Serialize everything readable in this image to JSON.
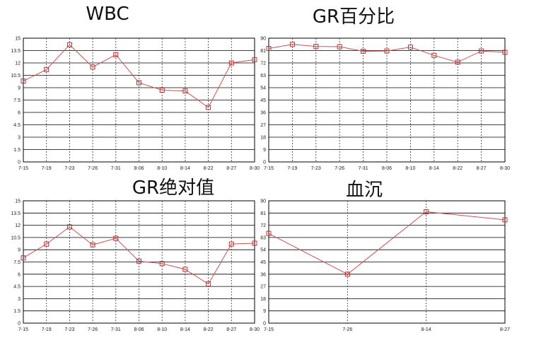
{
  "chart_data": [
    {
      "type": "line",
      "title": "WBC",
      "categories": [
        "7-15",
        "7-19",
        "7-23",
        "7-26",
        "7-31",
        "8-06",
        "8-10",
        "8-14",
        "8-22",
        "8-27",
        "8-30"
      ],
      "series": [
        {
          "values": [
            9.8,
            11.2,
            14.2,
            11.5,
            13.0,
            9.6,
            8.7,
            8.6,
            6.6,
            12.0,
            12.4
          ]
        }
      ],
      "ylim": [
        0,
        15
      ],
      "yticks": [
        "0",
        "1.5",
        "3",
        "4.5",
        "6",
        "7.5",
        "9",
        "10.5",
        "12",
        "13.5",
        "15"
      ],
      "grid": true,
      "colors": {
        "line": "#d05050",
        "marker": "#c03030"
      }
    },
    {
      "type": "line",
      "title": "GR百分比",
      "categories": [
        "7-15",
        "7-19",
        "7-23",
        "7-26",
        "7-31",
        "8-06",
        "8-10",
        "8-14",
        "8-22",
        "8-27",
        "8-30"
      ],
      "series": [
        {
          "values": [
            82.5,
            85.5,
            84.0,
            83.8,
            80.5,
            80.7,
            83.5,
            77.5,
            72.5,
            80.7,
            79.7
          ]
        }
      ],
      "ylim": [
        0,
        90
      ],
      "yticks": [
        "0",
        "9",
        "18",
        "27",
        "36",
        "45",
        "54",
        "63",
        "72",
        "81",
        "90"
      ],
      "grid": true,
      "colors": {
        "line": "#d05050",
        "marker": "#c03030"
      }
    },
    {
      "type": "line",
      "title": "GR绝对值",
      "categories": [
        "7-15",
        "7-19",
        "7-23",
        "7-26",
        "7-31",
        "8-06",
        "8-10",
        "8-14",
        "8-22",
        "8-27",
        "8-30"
      ],
      "series": [
        {
          "values": [
            8.0,
            9.7,
            11.8,
            9.6,
            10.4,
            7.6,
            7.3,
            6.6,
            4.8,
            9.7,
            9.8
          ]
        }
      ],
      "ylim": [
        0,
        15
      ],
      "yticks": [
        "0",
        "1.5",
        "3",
        "4.5",
        "6",
        "7.5",
        "9",
        "10.5",
        "12",
        "13.5",
        "15"
      ],
      "grid": true,
      "colors": {
        "line": "#d05050",
        "marker": "#c03030"
      }
    },
    {
      "type": "line",
      "title": "血沉",
      "categories": [
        "7-15",
        "7-26",
        "8-14",
        "8-27"
      ],
      "series": [
        {
          "values": [
            66,
            36,
            82,
            76
          ]
        }
      ],
      "ylim": [
        0,
        90
      ],
      "yticks": [
        "0",
        "9",
        "18",
        "27",
        "36",
        "45",
        "54",
        "63",
        "72",
        "81",
        "90"
      ],
      "grid": true,
      "colors": {
        "line": "#d05050",
        "marker": "#c03030"
      }
    }
  ]
}
